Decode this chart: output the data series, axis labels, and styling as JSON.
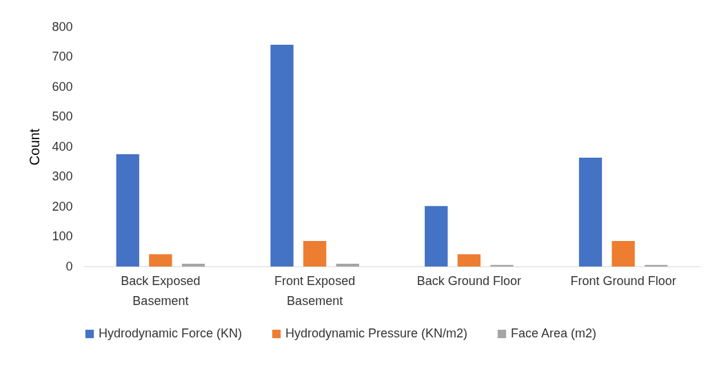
{
  "chart_data": {
    "type": "bar",
    "ylabel": "Count",
    "categories": [
      "Back Exposed Basement",
      "Front Exposed Basement",
      "Back Ground Floor",
      "Front Ground Floor"
    ],
    "series": [
      {
        "name": "Hydrodynamic Force (KN)",
        "color": "#4472c4",
        "values": [
          375,
          740,
          202,
          363
        ]
      },
      {
        "name": "Hydrodynamic Pressure (KN/m2)",
        "color": "#ed7d31",
        "values": [
          41,
          85,
          41,
          85
        ]
      },
      {
        "name": "Face Area (m2)",
        "color": "#a5a5a5",
        "values": [
          9,
          9,
          5,
          5
        ]
      }
    ],
    "ylim": [
      0,
      800
    ],
    "yticks": [
      0,
      100,
      200,
      300,
      400,
      500,
      600,
      700,
      800
    ],
    "grid": false,
    "legend": "bottom"
  }
}
